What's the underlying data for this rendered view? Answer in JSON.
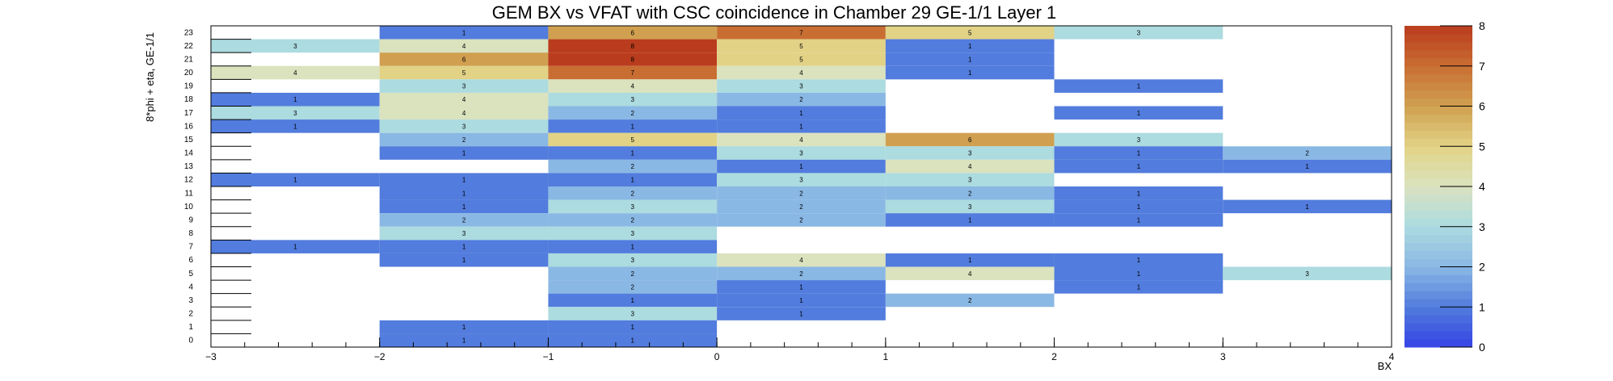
{
  "chart_data": {
    "type": "heatmap",
    "title": "GEM BX vs VFAT with CSC coincidence in Chamber 29 GE-1/1 Layer 1",
    "xlabel": "BX",
    "ylabel": "8*phi + eta, GE-1/1",
    "xlim": [
      -3,
      4
    ],
    "ylim": [
      0,
      24
    ],
    "zlim": [
      0,
      8
    ],
    "x_ticks": [
      "−3",
      "−2",
      "−1",
      "0",
      "1",
      "2",
      "3",
      "4"
    ],
    "y_ticks": [
      "0",
      "1",
      "2",
      "3",
      "4",
      "5",
      "6",
      "7",
      "8",
      "9",
      "10",
      "11",
      "12",
      "13",
      "14",
      "15",
      "16",
      "17",
      "18",
      "19",
      "20",
      "21",
      "22",
      "23"
    ],
    "z_ticks": [
      "0",
      "1",
      "2",
      "3",
      "4",
      "5",
      "6",
      "7",
      "8"
    ],
    "grid": false,
    "cells": [
      {
        "x": -2.5,
        "y": 22,
        "value": 3
      },
      {
        "x": -2.5,
        "y": 20,
        "value": 4
      },
      {
        "x": -2.5,
        "y": 18,
        "value": 1
      },
      {
        "x": -2.5,
        "y": 17,
        "value": 3
      },
      {
        "x": -2.5,
        "y": 16,
        "value": 1
      },
      {
        "x": -2.5,
        "y": 12,
        "value": 1
      },
      {
        "x": -2.5,
        "y": 7,
        "value": 1
      },
      {
        "x": -1.5,
        "y": 23,
        "value": 1
      },
      {
        "x": -1.5,
        "y": 22,
        "value": 4
      },
      {
        "x": -1.5,
        "y": 21,
        "value": 6
      },
      {
        "x": -1.5,
        "y": 20,
        "value": 5
      },
      {
        "x": -1.5,
        "y": 19,
        "value": 3
      },
      {
        "x": -1.5,
        "y": 18,
        "value": 4
      },
      {
        "x": -1.5,
        "y": 17,
        "value": 4
      },
      {
        "x": -1.5,
        "y": 16,
        "value": 3
      },
      {
        "x": -1.5,
        "y": 15,
        "value": 2
      },
      {
        "x": -1.5,
        "y": 14,
        "value": 1
      },
      {
        "x": -1.5,
        "y": 12,
        "value": 1
      },
      {
        "x": -1.5,
        "y": 11,
        "value": 1
      },
      {
        "x": -1.5,
        "y": 10,
        "value": 1
      },
      {
        "x": -1.5,
        "y": 9,
        "value": 2
      },
      {
        "x": -1.5,
        "y": 8,
        "value": 3
      },
      {
        "x": -1.5,
        "y": 7,
        "value": 1
      },
      {
        "x": -1.5,
        "y": 6,
        "value": 1
      },
      {
        "x": -1.5,
        "y": 1,
        "value": 1
      },
      {
        "x": -1.5,
        "y": 0,
        "value": 1
      },
      {
        "x": -0.5,
        "y": 23,
        "value": 6
      },
      {
        "x": -0.5,
        "y": 22,
        "value": 8
      },
      {
        "x": -0.5,
        "y": 21,
        "value": 8
      },
      {
        "x": -0.5,
        "y": 20,
        "value": 7
      },
      {
        "x": -0.5,
        "y": 19,
        "value": 4
      },
      {
        "x": -0.5,
        "y": 18,
        "value": 3
      },
      {
        "x": -0.5,
        "y": 17,
        "value": 2
      },
      {
        "x": -0.5,
        "y": 16,
        "value": 1
      },
      {
        "x": -0.5,
        "y": 15,
        "value": 5
      },
      {
        "x": -0.5,
        "y": 14,
        "value": 1
      },
      {
        "x": -0.5,
        "y": 13,
        "value": 2
      },
      {
        "x": -0.5,
        "y": 12,
        "value": 1
      },
      {
        "x": -0.5,
        "y": 11,
        "value": 2
      },
      {
        "x": -0.5,
        "y": 10,
        "value": 3
      },
      {
        "x": -0.5,
        "y": 9,
        "value": 2
      },
      {
        "x": -0.5,
        "y": 8,
        "value": 3
      },
      {
        "x": -0.5,
        "y": 7,
        "value": 1
      },
      {
        "x": -0.5,
        "y": 6,
        "value": 3
      },
      {
        "x": -0.5,
        "y": 5,
        "value": 2
      },
      {
        "x": -0.5,
        "y": 4,
        "value": 2
      },
      {
        "x": -0.5,
        "y": 3,
        "value": 1
      },
      {
        "x": -0.5,
        "y": 2,
        "value": 3
      },
      {
        "x": -0.5,
        "y": 1,
        "value": 1
      },
      {
        "x": -0.5,
        "y": 0,
        "value": 1
      },
      {
        "x": 0.5,
        "y": 23,
        "value": 7
      },
      {
        "x": 0.5,
        "y": 22,
        "value": 5
      },
      {
        "x": 0.5,
        "y": 21,
        "value": 5
      },
      {
        "x": 0.5,
        "y": 20,
        "value": 4
      },
      {
        "x": 0.5,
        "y": 19,
        "value": 3
      },
      {
        "x": 0.5,
        "y": 18,
        "value": 2
      },
      {
        "x": 0.5,
        "y": 17,
        "value": 1
      },
      {
        "x": 0.5,
        "y": 16,
        "value": 1
      },
      {
        "x": 0.5,
        "y": 15,
        "value": 4
      },
      {
        "x": 0.5,
        "y": 14,
        "value": 3
      },
      {
        "x": 0.5,
        "y": 13,
        "value": 1
      },
      {
        "x": 0.5,
        "y": 12,
        "value": 3
      },
      {
        "x": 0.5,
        "y": 11,
        "value": 2
      },
      {
        "x": 0.5,
        "y": 10,
        "value": 2
      },
      {
        "x": 0.5,
        "y": 9,
        "value": 2
      },
      {
        "x": 0.5,
        "y": 6,
        "value": 4
      },
      {
        "x": 0.5,
        "y": 5,
        "value": 2
      },
      {
        "x": 0.5,
        "y": 4,
        "value": 1
      },
      {
        "x": 0.5,
        "y": 3,
        "value": 1
      },
      {
        "x": 0.5,
        "y": 2,
        "value": 1
      },
      {
        "x": 1.5,
        "y": 23,
        "value": 5
      },
      {
        "x": 1.5,
        "y": 22,
        "value": 1
      },
      {
        "x": 1.5,
        "y": 21,
        "value": 1
      },
      {
        "x": 1.5,
        "y": 20,
        "value": 1
      },
      {
        "x": 1.5,
        "y": 15,
        "value": 6
      },
      {
        "x": 1.5,
        "y": 14,
        "value": 3
      },
      {
        "x": 1.5,
        "y": 13,
        "value": 4
      },
      {
        "x": 1.5,
        "y": 12,
        "value": 3
      },
      {
        "x": 1.5,
        "y": 11,
        "value": 2
      },
      {
        "x": 1.5,
        "y": 10,
        "value": 3
      },
      {
        "x": 1.5,
        "y": 9,
        "value": 1
      },
      {
        "x": 1.5,
        "y": 6,
        "value": 1
      },
      {
        "x": 1.5,
        "y": 5,
        "value": 4
      },
      {
        "x": 1.5,
        "y": 3,
        "value": 2
      },
      {
        "x": 2.5,
        "y": 23,
        "value": 3
      },
      {
        "x": 2.5,
        "y": 19,
        "value": 1
      },
      {
        "x": 2.5,
        "y": 17,
        "value": 1
      },
      {
        "x": 2.5,
        "y": 15,
        "value": 3
      },
      {
        "x": 2.5,
        "y": 14,
        "value": 1
      },
      {
        "x": 2.5,
        "y": 13,
        "value": 1
      },
      {
        "x": 2.5,
        "y": 11,
        "value": 1
      },
      {
        "x": 2.5,
        "y": 10,
        "value": 1
      },
      {
        "x": 2.5,
        "y": 9,
        "value": 1
      },
      {
        "x": 2.5,
        "y": 6,
        "value": 1
      },
      {
        "x": 2.5,
        "y": 5,
        "value": 1
      },
      {
        "x": 2.5,
        "y": 4,
        "value": 1
      },
      {
        "x": 3.5,
        "y": 14,
        "value": 2
      },
      {
        "x": 3.5,
        "y": 13,
        "value": 1
      },
      {
        "x": 3.5,
        "y": 10,
        "value": 1
      },
      {
        "x": 3.5,
        "y": 5,
        "value": 3
      }
    ]
  }
}
